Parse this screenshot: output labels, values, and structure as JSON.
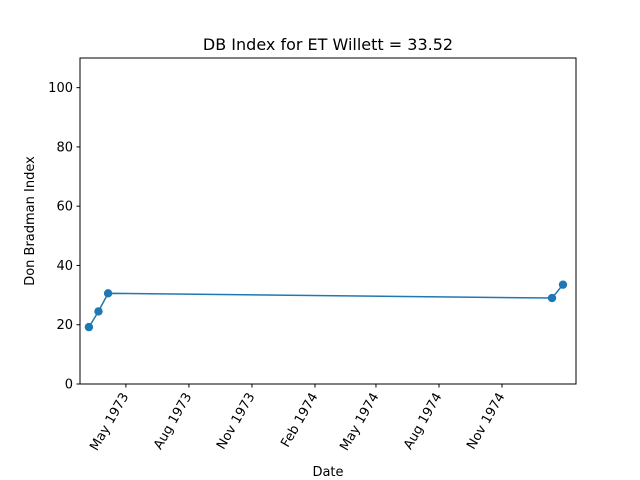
{
  "chart_data": {
    "type": "line",
    "title": "DB Index for ET Willett = 33.52",
    "xlabel": "Date",
    "ylabel": "Don Bradman Index",
    "ylim": [
      0,
      110
    ],
    "xlim": [
      "1973-02-23",
      "1975-02-17"
    ],
    "yticks": [
      0,
      20,
      40,
      60,
      80,
      100
    ],
    "xticks": [
      {
        "date": "1973-05-01",
        "label": "May 1973"
      },
      {
        "date": "1973-08-01",
        "label": "Aug 1973"
      },
      {
        "date": "1973-11-01",
        "label": "Nov 1973"
      },
      {
        "date": "1974-02-01",
        "label": "Feb 1974"
      },
      {
        "date": "1974-05-01",
        "label": "May 1974"
      },
      {
        "date": "1974-08-01",
        "label": "Aug 1974"
      },
      {
        "date": "1974-11-01",
        "label": "Nov 1974"
      }
    ],
    "grid": false,
    "series": [
      {
        "color": "#1f77b4",
        "points": [
          {
            "x": "1973-03-08",
            "y": 19.2
          },
          {
            "x": "1973-03-22",
            "y": 24.5
          },
          {
            "x": "1973-04-05",
            "y": 30.6
          },
          {
            "x": "1975-01-13",
            "y": 29.0
          },
          {
            "x": "1975-01-29",
            "y": 33.52
          }
        ]
      }
    ]
  }
}
